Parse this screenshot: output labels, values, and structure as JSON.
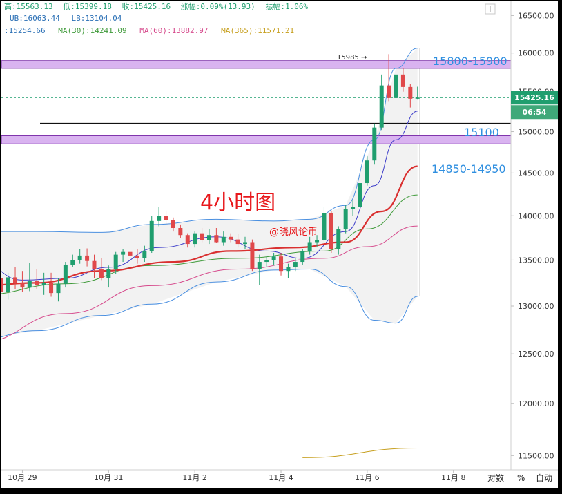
{
  "header": {
    "line1": [
      {
        "label": "高:",
        "value": "15563.13"
      },
      {
        "label": "低:",
        "value": "15399.18"
      },
      {
        "label": "收:",
        "value": "15425.16"
      },
      {
        "label": "涨幅:",
        "value": "0.09%(13.93)"
      },
      {
        "label": "振幅:",
        "value": "1.06%"
      }
    ],
    "line2": [
      {
        "label": "UB:",
        "value": "16063.44"
      },
      {
        "label": "LB:",
        "value": "13104.04"
      }
    ],
    "line3": [
      {
        "label": "",
        "value": "15254.66",
        "color": "#2a6fb5"
      },
      {
        "label": "MA(30):",
        "value": "14241.09",
        "color": "#3f9a3a"
      },
      {
        "label": "MA(60):",
        "value": "13882.97",
        "color": "#d64a8c"
      },
      {
        "label": "MA(365):",
        "value": "11571.21",
        "color": "#c7a020"
      }
    ]
  },
  "annotations": {
    "title": "4小时图",
    "watermark": "@晓风论币",
    "high_marker": "15985 →",
    "zone_upper": "15800-15900",
    "zone_lower": "14850-14950",
    "line_label": "15100"
  },
  "price_tag": {
    "price": "15425.16",
    "countdown": "06:54"
  },
  "footer": {
    "ratio_label": "对数",
    "percent_label": "%",
    "auto_label": "自动"
  },
  "colors": {
    "up": "#1f9e6e",
    "down": "#e0484a",
    "zone": "#d9b3f0",
    "zone_border": "#7a2da8",
    "boll": "#4a8fe0",
    "ma_fast": "#3b3bc9",
    "ma30": "#3f9a3a",
    "ma_red": "#d93030",
    "ma60": "#d64a8c",
    "ma365": "#c7a020",
    "label_blue": "#2f8fe0"
  },
  "chart_data": {
    "type": "candlestick",
    "title": "4小时图",
    "y_axis": {
      "scale": "log",
      "min": 11450,
      "max": 16560,
      "ticks": [
        16500,
        16000,
        15500,
        15000,
        14500,
        14000,
        13500,
        13000,
        12500,
        12000,
        11500
      ],
      "tick_labels": [
        "16500.00",
        "16000.00",
        "15500.00",
        "15000.00",
        "14500.00",
        "14000.00",
        "13500.00",
        "13000.00",
        "12500.00",
        "12000.00",
        "11500.00"
      ]
    },
    "x_axis": {
      "start": "2019-10-28 00:00",
      "end": "2019-11-09 08:00",
      "ticks": [
        "2019-10-29",
        "2019-10-31",
        "2019-11-02",
        "2019-11-04",
        "2019-11-06",
        "2019-11-08"
      ],
      "tick_labels": [
        "10月 29",
        "10月 31",
        "11月 2",
        "11月 4",
        "11月 6",
        "11月 8"
      ]
    },
    "candles": [
      {
        "t": "2019-10-28 04:00",
        "o": 13800,
        "h": 13880,
        "l": 13560,
        "c": 13700
      },
      {
        "t": "2019-10-28 08:00",
        "o": 13700,
        "h": 13760,
        "l": 13250,
        "c": 13300
      },
      {
        "t": "2019-10-28 12:00",
        "o": 13300,
        "h": 13420,
        "l": 12900,
        "c": 13150
      },
      {
        "t": "2019-10-28 16:00",
        "o": 13150,
        "h": 13360,
        "l": 13070,
        "c": 13310
      },
      {
        "t": "2019-10-28 20:00",
        "o": 13310,
        "h": 13420,
        "l": 13180,
        "c": 13250
      },
      {
        "t": "2019-10-29 00:00",
        "o": 13250,
        "h": 13380,
        "l": 13150,
        "c": 13200
      },
      {
        "t": "2019-10-29 04:00",
        "o": 13200,
        "h": 13470,
        "l": 13160,
        "c": 13270
      },
      {
        "t": "2019-10-29 08:00",
        "o": 13270,
        "h": 13400,
        "l": 13180,
        "c": 13230
      },
      {
        "t": "2019-10-29 12:00",
        "o": 13230,
        "h": 13360,
        "l": 13120,
        "c": 13250
      },
      {
        "t": "2019-10-29 16:00",
        "o": 13250,
        "h": 13360,
        "l": 13100,
        "c": 13140
      },
      {
        "t": "2019-10-29 20:00",
        "o": 13140,
        "h": 13300,
        "l": 13050,
        "c": 13240
      },
      {
        "t": "2019-10-30 00:00",
        "o": 13240,
        "h": 13480,
        "l": 13200,
        "c": 13450
      },
      {
        "t": "2019-10-30 04:00",
        "o": 13450,
        "h": 13560,
        "l": 13420,
        "c": 13500
      },
      {
        "t": "2019-10-30 08:00",
        "o": 13500,
        "h": 13620,
        "l": 13460,
        "c": 13550
      },
      {
        "t": "2019-10-30 12:00",
        "o": 13550,
        "h": 13630,
        "l": 13430,
        "c": 13490
      },
      {
        "t": "2019-10-30 16:00",
        "o": 13490,
        "h": 13560,
        "l": 13300,
        "c": 13400
      },
      {
        "t": "2019-10-30 20:00",
        "o": 13400,
        "h": 13520,
        "l": 13280,
        "c": 13300
      },
      {
        "t": "2019-10-31 00:00",
        "o": 13300,
        "h": 13440,
        "l": 13200,
        "c": 13400
      },
      {
        "t": "2019-10-31 04:00",
        "o": 13400,
        "h": 13590,
        "l": 13350,
        "c": 13560
      },
      {
        "t": "2019-10-31 08:00",
        "o": 13560,
        "h": 13620,
        "l": 13480,
        "c": 13590
      },
      {
        "t": "2019-10-31 12:00",
        "o": 13590,
        "h": 13660,
        "l": 13530,
        "c": 13550
      },
      {
        "t": "2019-10-31 16:00",
        "o": 13550,
        "h": 13620,
        "l": 13460,
        "c": 13520
      },
      {
        "t": "2019-10-31 20:00",
        "o": 13520,
        "h": 13660,
        "l": 13480,
        "c": 13600
      },
      {
        "t": "2019-11-01 00:00",
        "o": 13600,
        "h": 14000,
        "l": 13580,
        "c": 13940
      },
      {
        "t": "2019-11-01 04:00",
        "o": 13940,
        "h": 14100,
        "l": 13880,
        "c": 14000
      },
      {
        "t": "2019-11-01 08:00",
        "o": 14000,
        "h": 14060,
        "l": 13900,
        "c": 13950
      },
      {
        "t": "2019-11-01 12:00",
        "o": 13950,
        "h": 13980,
        "l": 13820,
        "c": 13860
      },
      {
        "t": "2019-11-01 16:00",
        "o": 13860,
        "h": 13900,
        "l": 13750,
        "c": 13780
      },
      {
        "t": "2019-11-01 20:00",
        "o": 13780,
        "h": 13800,
        "l": 13640,
        "c": 13680
      },
      {
        "t": "2019-11-02 00:00",
        "o": 13680,
        "h": 13820,
        "l": 13640,
        "c": 13800
      },
      {
        "t": "2019-11-02 04:00",
        "o": 13800,
        "h": 13860,
        "l": 13700,
        "c": 13720
      },
      {
        "t": "2019-11-02 08:00",
        "o": 13720,
        "h": 13850,
        "l": 13680,
        "c": 13780
      },
      {
        "t": "2019-11-02 12:00",
        "o": 13780,
        "h": 13860,
        "l": 13690,
        "c": 13700
      },
      {
        "t": "2019-11-02 16:00",
        "o": 13700,
        "h": 13820,
        "l": 13660,
        "c": 13760
      },
      {
        "t": "2019-11-02 20:00",
        "o": 13760,
        "h": 13800,
        "l": 13700,
        "c": 13730
      },
      {
        "t": "2019-11-03 00:00",
        "o": 13730,
        "h": 13790,
        "l": 13640,
        "c": 13680
      },
      {
        "t": "2019-11-03 04:00",
        "o": 13680,
        "h": 13760,
        "l": 13620,
        "c": 13700
      },
      {
        "t": "2019-11-03 08:00",
        "o": 13700,
        "h": 13730,
        "l": 13380,
        "c": 13400
      },
      {
        "t": "2019-11-03 12:00",
        "o": 13400,
        "h": 13560,
        "l": 13230,
        "c": 13480
      },
      {
        "t": "2019-11-03 16:00",
        "o": 13480,
        "h": 13540,
        "l": 13420,
        "c": 13500
      },
      {
        "t": "2019-11-03 20:00",
        "o": 13500,
        "h": 13580,
        "l": 13440,
        "c": 13540
      },
      {
        "t": "2019-11-04 00:00",
        "o": 13540,
        "h": 13580,
        "l": 13330,
        "c": 13380
      },
      {
        "t": "2019-11-04 04:00",
        "o": 13380,
        "h": 13460,
        "l": 13300,
        "c": 13420
      },
      {
        "t": "2019-11-04 08:00",
        "o": 13420,
        "h": 13520,
        "l": 13380,
        "c": 13480
      },
      {
        "t": "2019-11-04 12:00",
        "o": 13480,
        "h": 13620,
        "l": 13450,
        "c": 13600
      },
      {
        "t": "2019-11-04 16:00",
        "o": 13600,
        "h": 13760,
        "l": 13560,
        "c": 13700
      },
      {
        "t": "2019-11-04 20:00",
        "o": 13700,
        "h": 13780,
        "l": 13650,
        "c": 13720
      },
      {
        "t": "2019-11-05 00:00",
        "o": 13720,
        "h": 14100,
        "l": 13700,
        "c": 14030
      },
      {
        "t": "2019-11-05 04:00",
        "o": 14030,
        "h": 14060,
        "l": 13580,
        "c": 13620
      },
      {
        "t": "2019-11-05 08:00",
        "o": 13620,
        "h": 13880,
        "l": 13560,
        "c": 13850
      },
      {
        "t": "2019-11-05 12:00",
        "o": 13850,
        "h": 14120,
        "l": 13800,
        "c": 14080
      },
      {
        "t": "2019-11-05 16:00",
        "o": 14080,
        "h": 14180,
        "l": 14000,
        "c": 14100
      },
      {
        "t": "2019-11-05 20:00",
        "o": 14100,
        "h": 14420,
        "l": 14050,
        "c": 14380
      },
      {
        "t": "2019-11-06 00:00",
        "o": 14380,
        "h": 14700,
        "l": 14350,
        "c": 14650
      },
      {
        "t": "2019-11-06 04:00",
        "o": 14650,
        "h": 15100,
        "l": 14600,
        "c": 15050
      },
      {
        "t": "2019-11-06 08:00",
        "o": 15050,
        "h": 15720,
        "l": 15020,
        "c": 15580
      },
      {
        "t": "2019-11-06 12:00",
        "o": 15580,
        "h": 15985,
        "l": 15380,
        "c": 15420
      },
      {
        "t": "2019-11-06 16:00",
        "o": 15420,
        "h": 15760,
        "l": 15350,
        "c": 15720
      },
      {
        "t": "2019-11-06 20:00",
        "o": 15720,
        "h": 15800,
        "l": 15500,
        "c": 15560
      },
      {
        "t": "2019-11-07 00:00",
        "o": 15560,
        "h": 15600,
        "l": 15300,
        "c": 15411
      },
      {
        "t": "2019-11-07 04:00",
        "o": 15411,
        "h": 15563,
        "l": 15399,
        "c": 15425
      }
    ],
    "series": [
      {
        "name": "BOLL UB",
        "color": "#4a8fe0",
        "x": [
          "2019-10-28 00:00",
          "2019-10-29 08:00",
          "2019-10-30 20:00",
          "2019-11-01 00:00",
          "2019-11-02 12:00",
          "2019-11-03 20:00",
          "2019-11-04 16:00",
          "2019-11-05 12:00",
          "2019-11-06 04:00",
          "2019-11-06 16:00",
          "2019-11-07 04:00"
        ],
        "values": [
          13820,
          13820,
          13810,
          13900,
          13960,
          13940,
          13960,
          14120,
          14900,
          15800,
          16063
        ]
      },
      {
        "name": "BOLL LB",
        "color": "#4a8fe0",
        "x": [
          "2019-10-28 00:00",
          "2019-10-29 08:00",
          "2019-10-30 20:00",
          "2019-11-01 00:00",
          "2019-11-02 12:00",
          "2019-11-03 20:00",
          "2019-11-04 16:00",
          "2019-11-05 12:00",
          "2019-11-06 04:00",
          "2019-11-06 16:00",
          "2019-11-07 04:00"
        ],
        "values": [
          12650,
          12740,
          12900,
          13020,
          13260,
          13390,
          13400,
          13210,
          12850,
          12820,
          13104
        ]
      },
      {
        "name": "",
        "color": "#3b3bc9",
        "x": [
          "2019-10-28 00:00",
          "2019-10-29 00:00",
          "2019-10-30 00:00",
          "2019-10-31 00:00",
          "2019-11-01 04:00",
          "2019-11-02 12:00",
          "2019-11-03 16:00",
          "2019-11-04 12:00",
          "2019-11-05 12:00",
          "2019-11-06 04:00",
          "2019-11-06 16:00",
          "2019-11-07 04:00"
        ],
        "values": [
          13480,
          13280,
          13300,
          13420,
          13640,
          13760,
          13600,
          13520,
          13820,
          14350,
          14900,
          15254
        ]
      },
      {
        "name": "MA(30)",
        "color": "#3f9a3a",
        "x": [
          "2019-10-28 00:00",
          "2019-10-30 00:00",
          "2019-11-01 00:00",
          "2019-11-03 00:00",
          "2019-11-05 00:00",
          "2019-11-06 00:00",
          "2019-11-07 04:00"
        ],
        "values": [
          13120,
          13240,
          13440,
          13520,
          13600,
          13850,
          14241
        ]
      },
      {
        "name": "",
        "color": "#d93030",
        "x": [
          "2019-10-28 00:00",
          "2019-10-29 08:00",
          "2019-10-30 20:00",
          "2019-11-01 12:00",
          "2019-11-02 20:00",
          "2019-11-04 08:00",
          "2019-11-05 12:00",
          "2019-11-06 08:00",
          "2019-11-07 04:00"
        ],
        "values": [
          13220,
          13250,
          13380,
          13480,
          13600,
          13640,
          13700,
          14050,
          14580
        ]
      },
      {
        "name": "MA(60)",
        "color": "#d64a8c",
        "x": [
          "2019-10-28 00:00",
          "2019-10-30 00:00",
          "2019-11-01 00:00",
          "2019-11-03 00:00",
          "2019-11-05 00:00",
          "2019-11-06 00:00",
          "2019-11-07 04:00"
        ],
        "values": [
          12620,
          12920,
          13220,
          13400,
          13520,
          13650,
          13883
        ]
      },
      {
        "name": "MA(365)",
        "color": "#c7a020",
        "x": [
          "2019-11-04 12:00",
          "2019-11-07 04:00"
        ],
        "values": [
          11480,
          11571
        ]
      }
    ],
    "zones": [
      {
        "label": "15800-15900",
        "low": 15800,
        "high": 15900
      },
      {
        "label": "14850-14950",
        "low": 14850,
        "high": 14950
      }
    ],
    "levels": [
      {
        "label": "15100",
        "value": 15100
      },
      {
        "label": "",
        "value": 15425.16,
        "style": "dashed"
      }
    ],
    "current_price": 15425.16
  }
}
